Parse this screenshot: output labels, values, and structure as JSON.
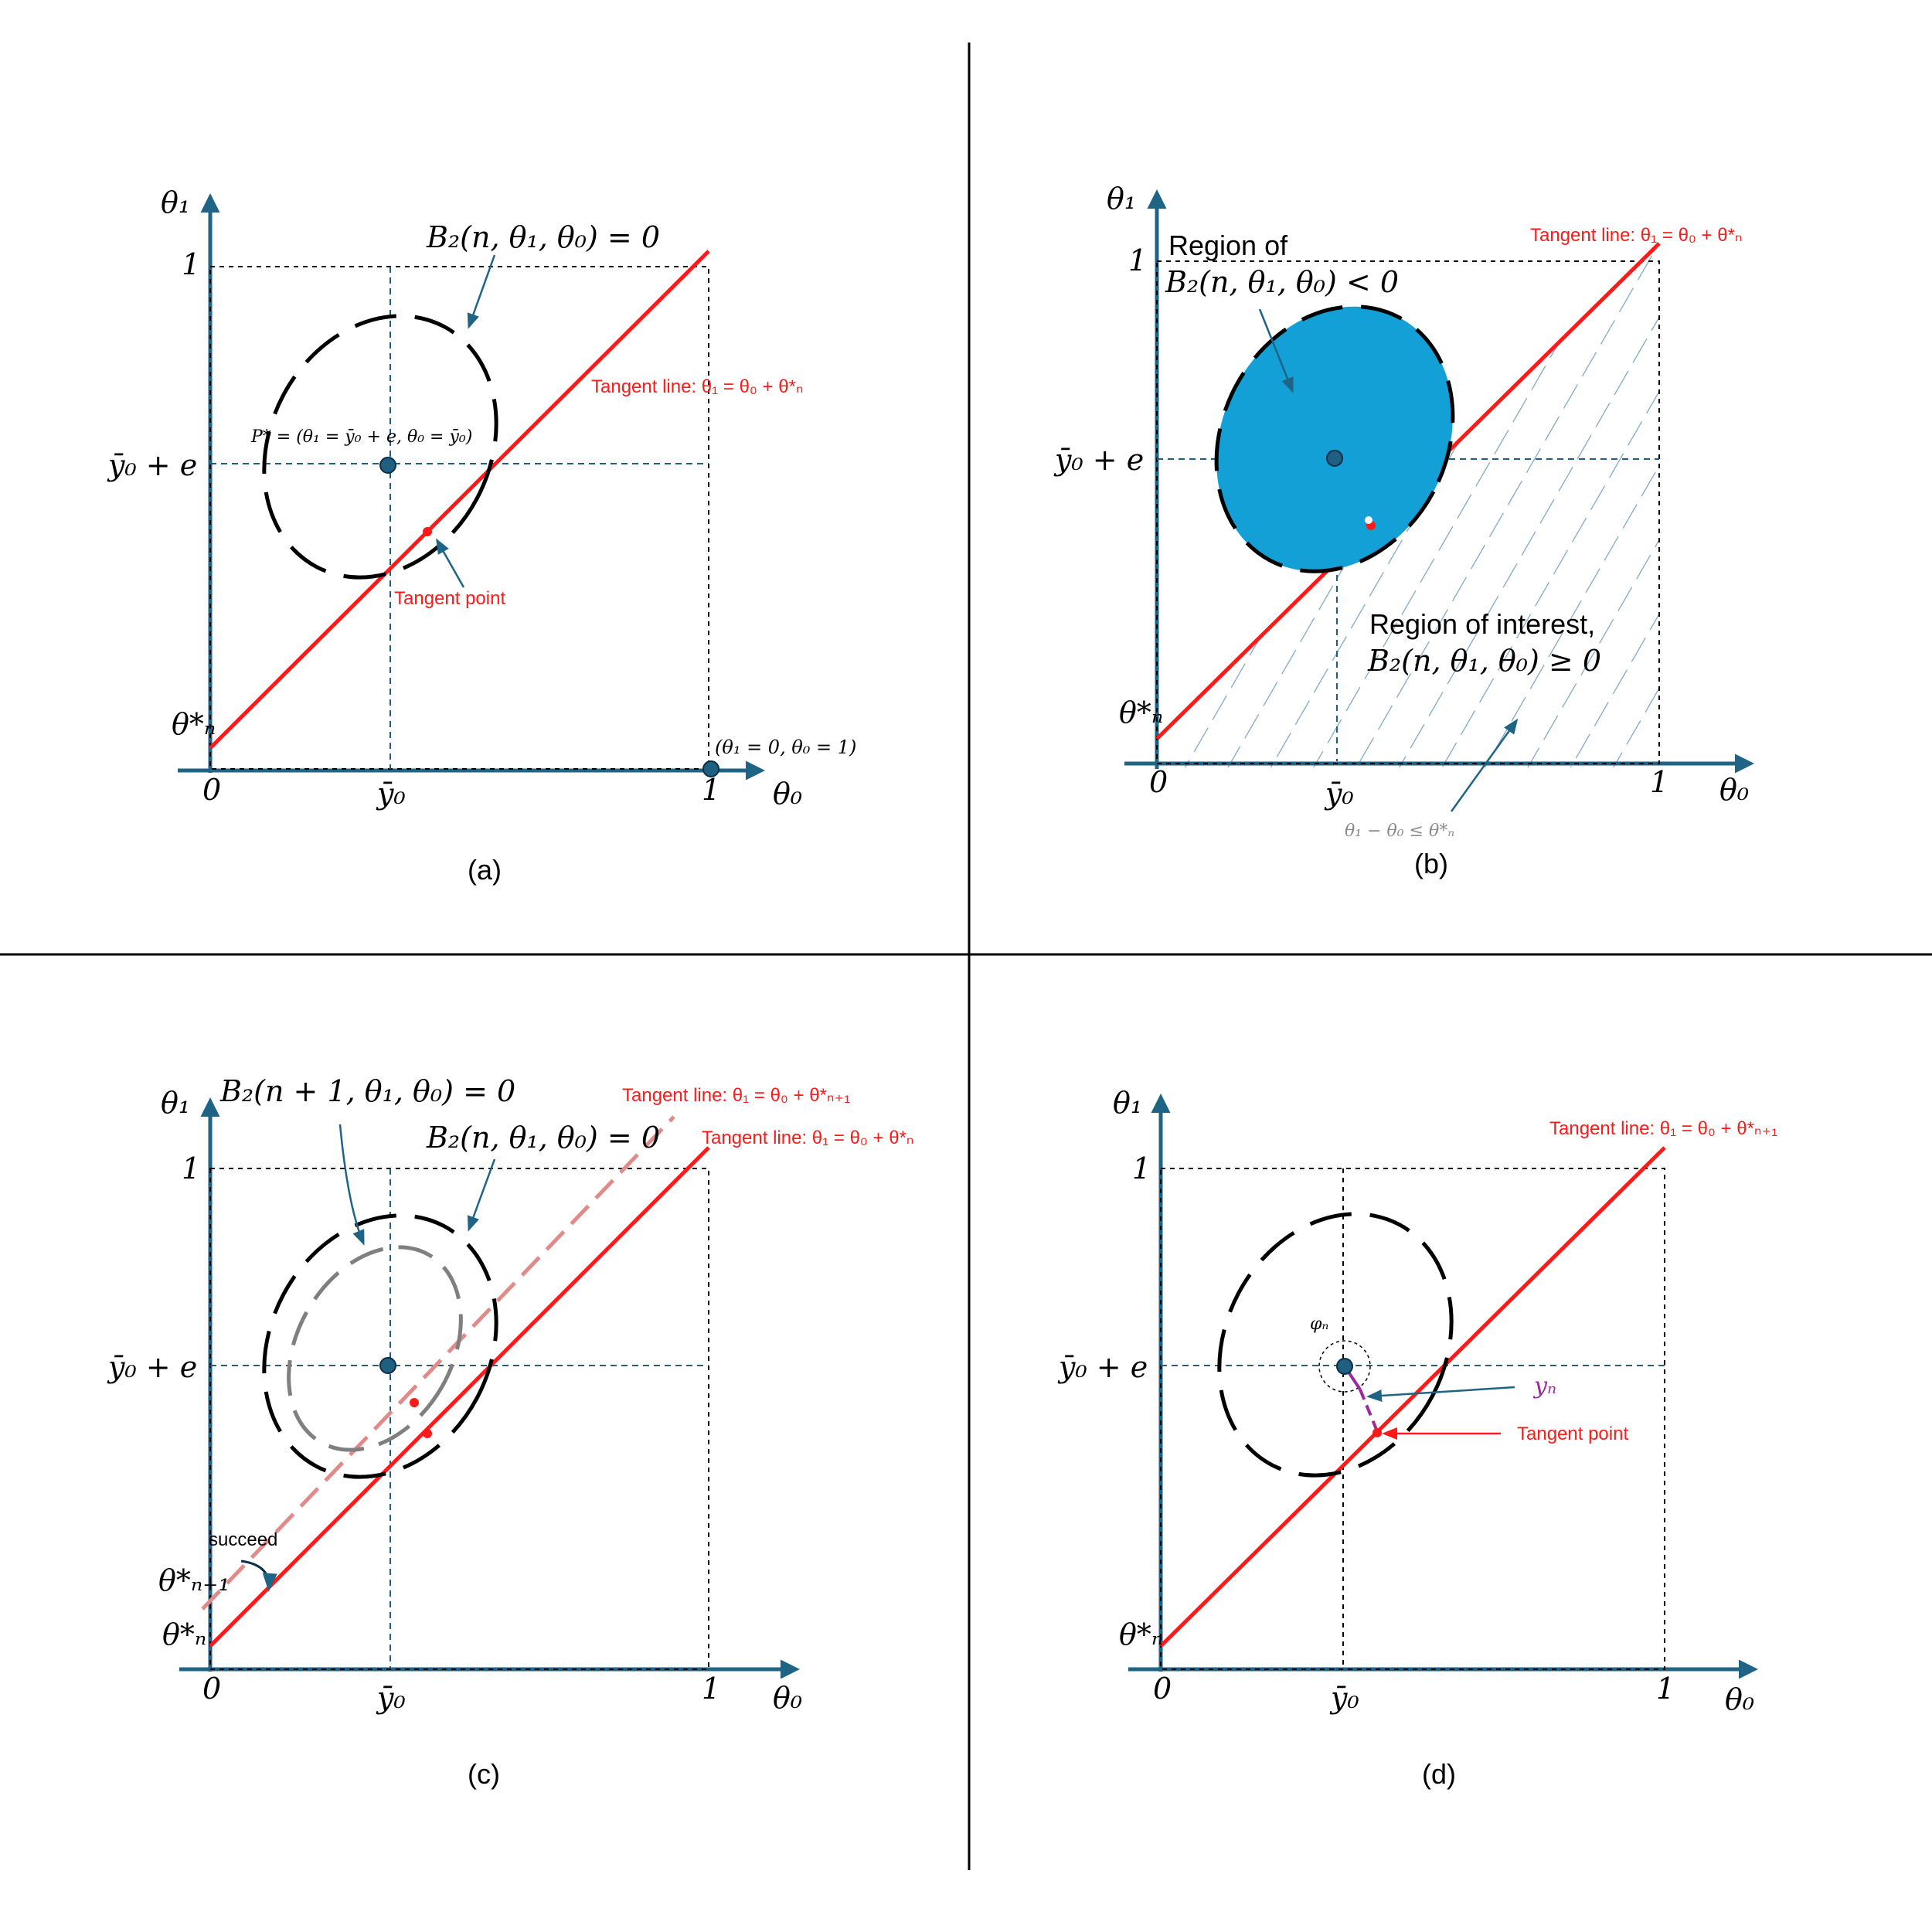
{
  "panels": {
    "a": {
      "caption": "(a)",
      "theta1_label": "θ₁",
      "theta0_label": "θ₀",
      "one_y": "1",
      "one_x": "1",
      "zero": "0",
      "ybar_e": "ȳ₀ + e",
      "ybar": "ȳ₀",
      "theta_n": "θ*ₙ",
      "ellipse_label": "B₂(n, θ₁, θ₀) = 0",
      "tangent_line": "Tangent line: θ₁ = θ₀ + θ*ₙ",
      "point_label": "P* =  (θ₁ = ȳ₀ + e, θ₀ = ȳ₀)",
      "tangent_point": "Tangent point",
      "corner_point": "(θ₁ = 0, θ₀ = 1)"
    },
    "b": {
      "caption": "(b)",
      "theta1_label": "θ₁",
      "theta0_label": "θ₀",
      "one_y": "1",
      "one_x": "1",
      "zero": "0",
      "ybar_e": "ȳ₀ + e",
      "ybar": "ȳ₀",
      "theta_n": "θ*ₙ",
      "region_line1": "Region of",
      "region_line2": "B₂(n, θ₁, θ₀) < 0",
      "interest_line1": "Region of interest,",
      "interest_line2": "B₂(n, θ₁, θ₀) ≥ 0",
      "tangent_line": "Tangent line: θ₁ = θ₀ + θ*ₙ",
      "inequality": "θ₁ − θ₀ ≤ θ*ₙ"
    },
    "c": {
      "caption": "(c)",
      "theta1_label": "θ₁",
      "theta0_label": "θ₀",
      "one_y": "1",
      "one_x": "1",
      "zero": "0",
      "ybar_e": "ȳ₀ + e",
      "ybar": "ȳ₀",
      "theta_n": "θ*ₙ",
      "theta_n1": "θ*ₙ₊₁",
      "ellipse_n1_label": "B₂(n + 1, θ₁, θ₀) = 0",
      "ellipse_n_label": "B₂(n, θ₁, θ₀) = 0",
      "tangent_n1": "Tangent line: θ₁ = θ₀ + θ*ₙ₊₁",
      "tangent_n": "Tangent line: θ₁ = θ₀ + θ*ₙ",
      "succeed": "succeed"
    },
    "d": {
      "caption": "(d)",
      "theta1_label": "θ₁",
      "theta0_label": "θ₀",
      "one_y": "1",
      "one_x": "1",
      "zero": "0",
      "ybar_e": "ȳ₀ + e",
      "ybar": "ȳ₀",
      "theta_n": "θ*ₙ",
      "tangent_n1": "Tangent line: θ₁ = θ₀ + θ*ₙ₊₁",
      "phi": "φₙ",
      "yn": "yₙ",
      "tangent_point": "Tangent point"
    }
  },
  "colors": {
    "axis": "#1f6485",
    "tangent": "#ff1a1a",
    "region_fill": "#12a0d6",
    "faded_tangent": "#e08a8a",
    "inner_ellipse": "#7f7f7f",
    "yn_segment": "#9b2a9b"
  }
}
